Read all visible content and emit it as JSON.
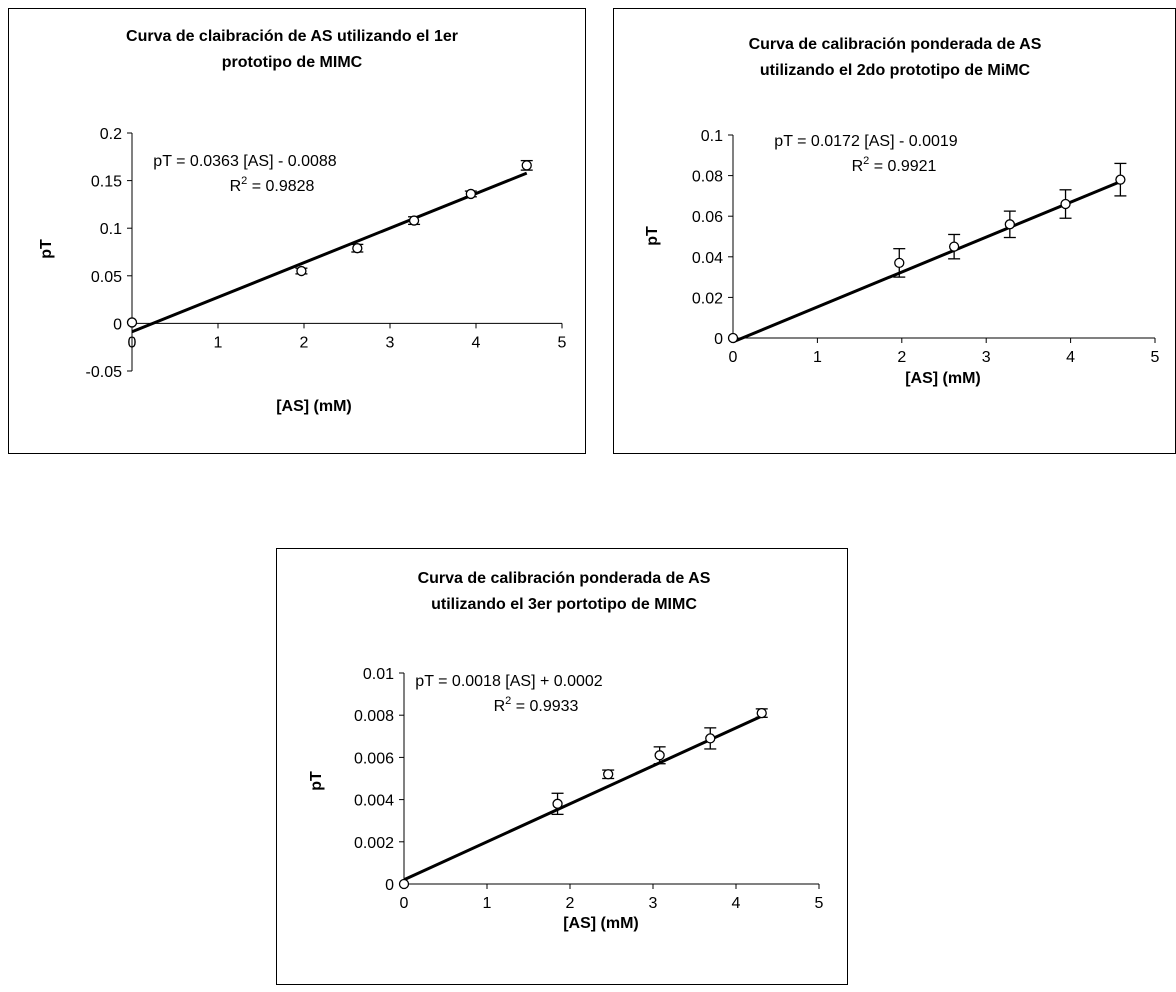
{
  "chart_data": [
    {
      "type": "scatter",
      "title_lines": [
        "Curva de claibración de AS utilizando el 1er",
        "prototipo de MIMC"
      ],
      "xlabel": "[AS]  (mM)",
      "ylabel": "pT",
      "xlim": [
        0,
        5
      ],
      "ylim": [
        -0.05,
        0.2
      ],
      "x_ticks": [
        "0",
        "1",
        "2",
        "3",
        "4",
        "5"
      ],
      "y_ticks": [
        "-0.05",
        "0",
        "0.05",
        "0.1",
        "0.15",
        "0.2"
      ],
      "y_tick_values": [
        -0.05,
        0,
        0.05,
        0.1,
        0.15,
        0.2
      ],
      "points": [
        {
          "x": 0,
          "y": 0.001,
          "err": 0
        },
        {
          "x": 1.97,
          "y": 0.055,
          "err": 0.003
        },
        {
          "x": 2.62,
          "y": 0.079,
          "err": 0.004
        },
        {
          "x": 3.28,
          "y": 0.108,
          "err": 0.004
        },
        {
          "x": 3.94,
          "y": 0.136,
          "err": 0.003
        },
        {
          "x": 4.59,
          "y": 0.166,
          "err": 0.005
        }
      ],
      "trendline": {
        "slope": 0.0363,
        "intercept": -0.0088,
        "x_range": [
          0,
          4.59
        ]
      },
      "equation": "pT = 0.0363 [AS] - 0.0088",
      "r2_prefix": "R",
      "r2_value": " = 0.9828",
      "grid": false,
      "legend": "none"
    },
    {
      "type": "scatter",
      "title_lines": [
        "Curva de calibración ponderada de AS",
        "utilizando el 2do prototipo de MiMC"
      ],
      "xlabel": "[AS] (mM)",
      "ylabel": "pT",
      "xlim": [
        0,
        5
      ],
      "ylim": [
        0,
        0.1
      ],
      "x_ticks": [
        "0",
        "1",
        "2",
        "3",
        "4",
        "5"
      ],
      "y_ticks": [
        "0",
        "0.02",
        "0.04",
        "0.06",
        "0.08",
        "0.1"
      ],
      "y_tick_values": [
        0,
        0.02,
        0.04,
        0.06,
        0.08,
        0.1
      ],
      "points": [
        {
          "x": 0,
          "y": 0,
          "err": 0
        },
        {
          "x": 1.97,
          "y": 0.037,
          "err": 0.007
        },
        {
          "x": 2.62,
          "y": 0.045,
          "err": 0.006
        },
        {
          "x": 3.28,
          "y": 0.056,
          "err": 0.0065
        },
        {
          "x": 3.94,
          "y": 0.066,
          "err": 0.007
        },
        {
          "x": 4.59,
          "y": 0.078,
          "err": 0.008
        }
      ],
      "trendline": {
        "slope": 0.0172,
        "intercept": -0.0019,
        "x_range": [
          0,
          4.59
        ]
      },
      "equation": "pT = 0.0172 [AS] - 0.0019",
      "r2_prefix": "R",
      "r2_value": " = 0.9921",
      "grid": false,
      "legend": "none"
    },
    {
      "type": "scatter",
      "title_lines": [
        "Curva de calibración ponderada de AS",
        "utilizando el 3er portotipo de MIMC"
      ],
      "xlabel": "[AS] (mM)",
      "ylabel": "pT",
      "xlim": [
        0,
        5
      ],
      "ylim": [
        0,
        0.01
      ],
      "x_ticks": [
        "0",
        "1",
        "2",
        "3",
        "4",
        "5"
      ],
      "y_ticks": [
        "0",
        "0.002",
        "0.004",
        "0.006",
        "0.008",
        "0.01"
      ],
      "y_tick_values": [
        0,
        0.002,
        0.004,
        0.006,
        0.008,
        0.01
      ],
      "points": [
        {
          "x": 0,
          "y": 0,
          "err": 0
        },
        {
          "x": 1.85,
          "y": 0.0038,
          "err": 0.0005
        },
        {
          "x": 2.46,
          "y": 0.0052,
          "err": 0.0002
        },
        {
          "x": 3.08,
          "y": 0.0061,
          "err": 0.0004
        },
        {
          "x": 3.69,
          "y": 0.0069,
          "err": 0.0005
        },
        {
          "x": 4.31,
          "y": 0.0081,
          "err": 0.0002
        }
      ],
      "trendline": {
        "slope": 0.0018,
        "intercept": 0.0002,
        "x_range": [
          0,
          4.31
        ]
      },
      "equation": "pT = 0.0018 [AS] + 0.0002",
      "r2_prefix": "R",
      "r2_value": " = 0.9933",
      "grid": false,
      "legend": "none"
    }
  ]
}
